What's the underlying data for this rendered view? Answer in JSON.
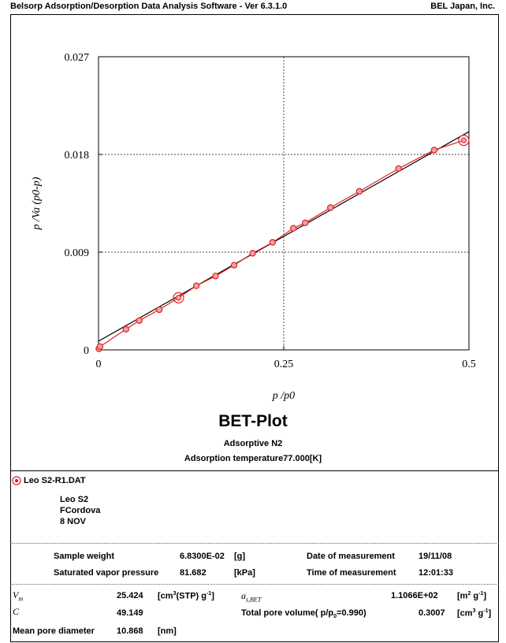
{
  "header": {
    "app_title": "Belsorp Adsorption/Desorption Data Analysis Software - Ver 6.3.1.0",
    "company": "BEL Japan, Inc."
  },
  "plot_title": "BET-Plot",
  "adsorptive": "Adsorptive N2",
  "adsorption_temperature": "Adsorption temperature77.000[K]",
  "chart_data": {
    "type": "line",
    "title": "BET-Plot",
    "xlabel": "p /p0",
    "ylabel": "p /Va (p0-p)",
    "xlim": [
      0,
      0.5
    ],
    "ylim": [
      0,
      0.027
    ],
    "xticks": [
      0,
      0.25,
      0.5
    ],
    "xtick_labels": [
      "0",
      "0.25",
      "0.5"
    ],
    "yticks": [
      0,
      0.009,
      0.018,
      0.027
    ],
    "ytick_labels": [
      "0",
      "0.009",
      "0.018",
      "0.027"
    ],
    "grid": "dotted",
    "series": [
      {
        "name": "Leo S2-R1.DAT",
        "color": "#e02020",
        "x": [
          0.0005,
          0.002,
          0.037,
          0.055,
          0.082,
          0.108,
          0.132,
          0.158,
          0.183,
          0.208,
          0.235,
          0.263,
          0.279,
          0.313,
          0.352,
          0.405,
          0.453,
          0.493
        ],
        "y": [
          0.0001,
          0.0003,
          0.0019,
          0.0027,
          0.0037,
          0.0048,
          0.0059,
          0.0068,
          0.0078,
          0.0089,
          0.0099,
          0.0112,
          0.0117,
          0.0131,
          0.0146,
          0.0167,
          0.0184,
          0.0193
        ],
        "highlighted_points": [
          5,
          17
        ]
      },
      {
        "name": "",
        "color": "#000000",
        "x": [
          0,
          0.5
        ],
        "y": [
          0.0008,
          0.0201
        ]
      }
    ]
  },
  "legend": {
    "file": "Leo S2-R1.DAT",
    "notes": [
      "Leo S2",
      "FCordova",
      "8 NOV"
    ]
  },
  "info": {
    "sample_weight_label": "Sample weight",
    "sample_weight_value": "6.8300E-02",
    "sample_weight_unit": "[g]",
    "svp_label": "Saturated vapor pressure",
    "svp_value": "81.682",
    "svp_unit": "[kPa]",
    "date_label": "Date of measurement",
    "date_value": "19/11/08",
    "time_label": "Time of measurement",
    "time_value": "12:01:33"
  },
  "results": {
    "vm_label": "V",
    "vm_sub": "m",
    "vm_value": "25.424",
    "vm_unit_a": "[cm",
    "vm_unit_sup": "3",
    "vm_unit_b": "(STP) g",
    "vm_unit_sup2": "-1",
    "vm_unit_c": "]",
    "c_label": "C",
    "c_value": "49.149",
    "asbet_label": "a",
    "asbet_sub": "s,BET",
    "asbet_value": "1.1066E+02",
    "asbet_unit_a": "[m",
    "asbet_unit_sup": "2",
    "asbet_unit_b": " g",
    "asbet_unit_sup2": "-1",
    "asbet_unit_c": "]",
    "tpv_label": "Total pore volume( p/p",
    "tpv_sub": "0",
    "tpv_label_end": "=0.990)",
    "tpv_value": "0.3007",
    "tpv_unit_a": "[cm",
    "tpv_unit_sup": "3",
    "tpv_unit_b": " g",
    "tpv_unit_sup2": "-1",
    "tpv_unit_c": "]",
    "mpd_label": "Mean pore diameter",
    "mpd_value": "10.868",
    "mpd_unit": "[nm]"
  }
}
